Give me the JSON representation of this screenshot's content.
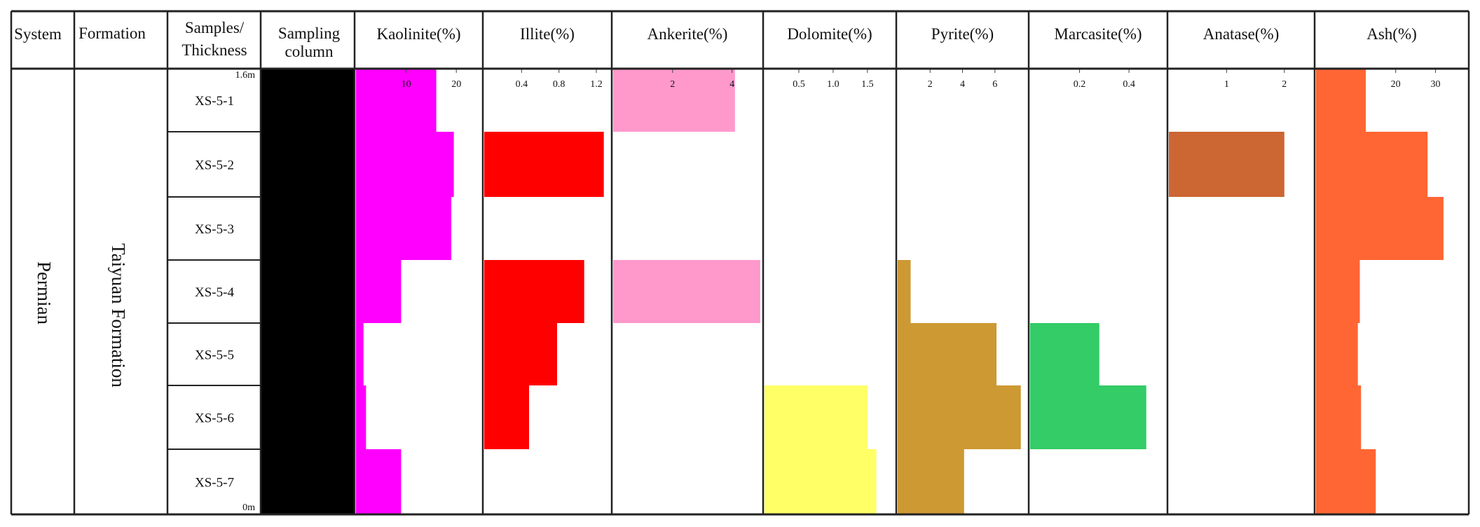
{
  "headers": {
    "system": "System",
    "formation": "Formation",
    "samples_line1": "Samples/",
    "samples_line2": "Thickness",
    "sampling_line1": "Sampling",
    "sampling_line2": "column"
  },
  "system_value": "Permian",
  "formation_value": "Taiyuan Formation",
  "thickness_top": "1.6m",
  "thickness_bottom": "0m",
  "samples": [
    "XS-5-1",
    "XS-5-2",
    "XS-5-3",
    "XS-5-4",
    "XS-5-5",
    "XS-5-6",
    "XS-5-7"
  ],
  "chart_data": {
    "type": "bar",
    "title": "",
    "categories": [
      "XS-5-1",
      "XS-5-2",
      "XS-5-3",
      "XS-5-4",
      "XS-5-5",
      "XS-5-6",
      "XS-5-7"
    ],
    "series": [
      {
        "name": "Kaolinite(%)",
        "color": "#ff00ff",
        "xlim": [
          0,
          25
        ],
        "ticks": [
          10,
          20
        ],
        "tick_labels": [
          "10",
          "20"
        ],
        "values": [
          16,
          19.5,
          19,
          9,
          1.5,
          2,
          9
        ]
      },
      {
        "name": "Illite(%)",
        "color": "#ff0000",
        "xlim": [
          0,
          1.35
        ],
        "ticks": [
          0.4,
          0.8,
          1.2
        ],
        "tick_labels": [
          "0.4",
          "0.8",
          "1.2"
        ],
        "values": [
          0,
          1.28,
          0,
          1.07,
          0.78,
          0.48,
          0
        ]
      },
      {
        "name": "Ankerite(%)",
        "color": "#ff99cc",
        "xlim": [
          0,
          5
        ],
        "ticks": [
          2,
          4
        ],
        "tick_labels": [
          "2",
          "4"
        ],
        "values": [
          4.1,
          0,
          0,
          4.95,
          0,
          0,
          0
        ]
      },
      {
        "name": "Dolomite(%)",
        "color": "#ffff66",
        "xlim": [
          0,
          1.9
        ],
        "ticks": [
          0.5,
          1.0,
          1.5
        ],
        "tick_labels": [
          "0.5",
          "1.0",
          "1.5"
        ],
        "values": [
          0,
          0,
          0,
          0,
          0,
          1.5,
          1.63
        ]
      },
      {
        "name": "Pyrite(%)",
        "color": "#cc9933",
        "xlim": [
          0,
          8
        ],
        "ticks": [
          2,
          4,
          6
        ],
        "tick_labels": [
          "2",
          "4",
          "6"
        ],
        "values": [
          0,
          0,
          0,
          0.8,
          6.1,
          7.6,
          4.1
        ]
      },
      {
        "name": "Marcasite(%)",
        "color": "#33cc66",
        "xlim": [
          0,
          0.55
        ],
        "ticks": [
          0.2,
          0.4
        ],
        "tick_labels": [
          "0.2",
          "0.4"
        ],
        "values": [
          0,
          0,
          0,
          0,
          0.28,
          0.47,
          0
        ]
      },
      {
        "name": "Anatase(%)",
        "color": "#cc6633",
        "xlim": [
          0,
          2.5
        ],
        "ticks": [
          1,
          2
        ],
        "tick_labels": [
          "1",
          "2"
        ],
        "values": [
          0,
          2.0,
          0,
          0,
          0,
          0,
          0
        ]
      },
      {
        "name": "Ash(%)",
        "color": "#ff6633",
        "xlim": [
          0,
          38
        ],
        "ticks": [
          20,
          30
        ],
        "tick_labels": [
          "20",
          "30"
        ],
        "values": [
          12.5,
          28,
          32,
          11,
          10.5,
          11.3,
          15
        ]
      }
    ],
    "xlabel": "",
    "ylabel": ""
  }
}
